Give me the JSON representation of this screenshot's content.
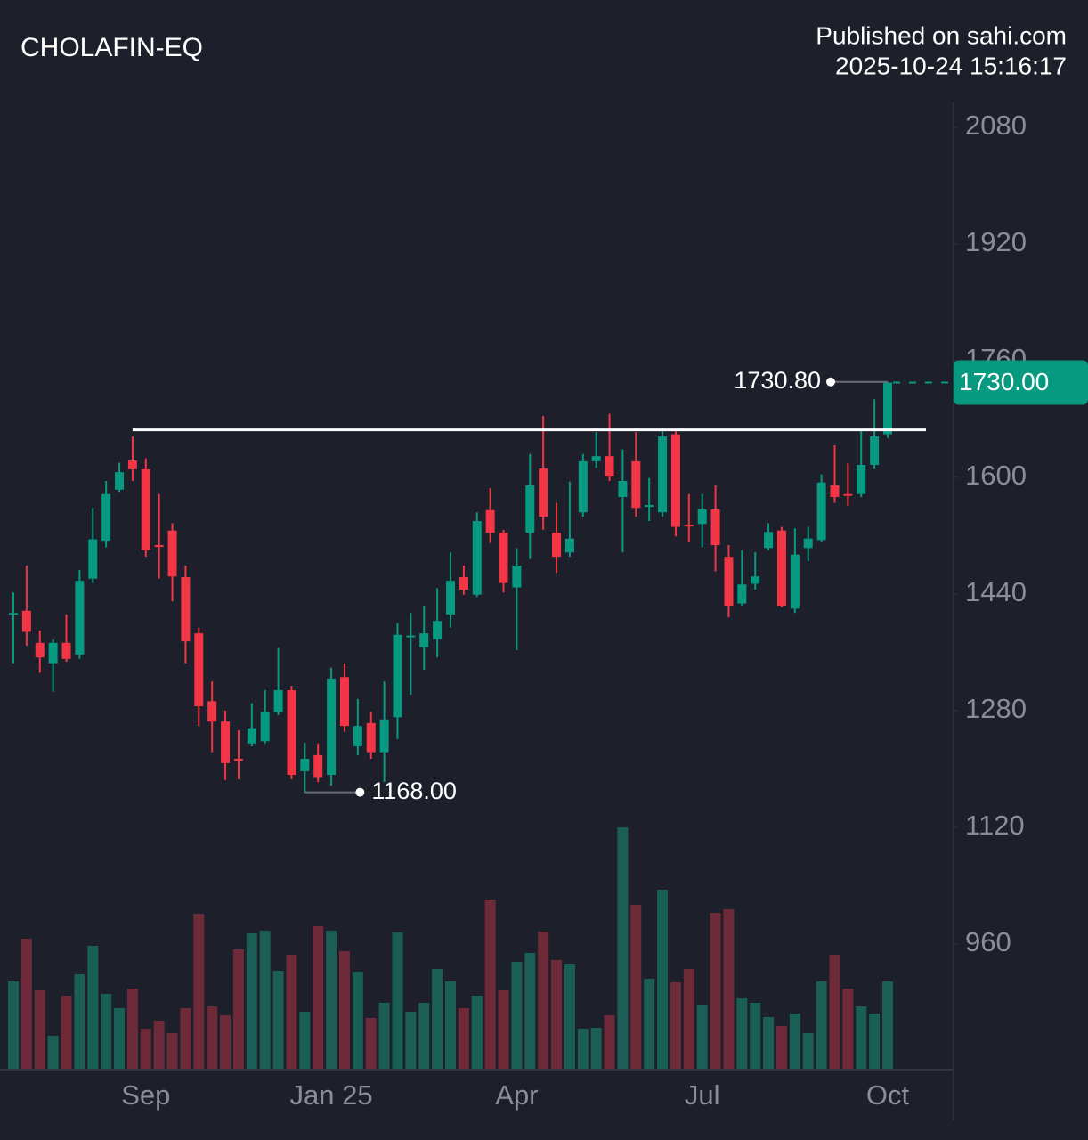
{
  "chart_data": {
    "type": "candlestick",
    "title": "CHOLAFIN-EQ",
    "source": "Published on sahi.com",
    "timestamp": "2025-10-24 15:16:17",
    "categories": [
      null,
      null,
      null,
      null,
      null,
      null,
      null,
      null,
      null,
      null,
      "Sep",
      null,
      null,
      null,
      null,
      null,
      null,
      null,
      null,
      null,
      null,
      null,
      null,
      null,
      "Jan 25",
      null,
      null,
      null,
      null,
      null,
      null,
      null,
      null,
      null,
      null,
      null,
      null,
      null,
      "Apr",
      null,
      null,
      null,
      null,
      null,
      null,
      null,
      null,
      null,
      null,
      null,
      null,
      null,
      "Jul",
      null,
      null,
      null,
      null,
      null,
      null,
      null,
      null,
      null,
      null,
      null,
      null,
      null,
      "Oct"
    ],
    "open": [
      1413,
      1417,
      1373,
      1345,
      1373,
      1357,
      1461,
      1513,
      1583,
      1623,
      1611,
      1507,
      1527,
      1463,
      1386,
      1293,
      1265,
      1214,
      1235,
      1238,
      1278,
      1308,
      1197,
      1219,
      1192,
      1326,
      1231,
      1263,
      1223,
      1271,
      1381,
      1367,
      1378,
      1412,
      1463,
      1439,
      1555,
      1524,
      1449,
      1524,
      1612,
      1524,
      1497,
      1552,
      1622,
      1629,
      1573,
      1622,
      1560,
      1552,
      1659,
      1535,
      1536,
      1556,
      1491,
      1427,
      1454,
      1503,
      1527,
      1420,
      1503,
      1514,
      1589,
      1577,
      1577,
      1617,
      1659
    ],
    "high": [
      1442,
      1479,
      1390,
      1378,
      1412,
      1473,
      1558,
      1595,
      1620,
      1656,
      1626,
      1577,
      1537,
      1479,
      1394,
      1320,
      1280,
      1253,
      1290,
      1308,
      1366,
      1314,
      1236,
      1235,
      1339,
      1345,
      1296,
      1278,
      1320,
      1400,
      1414,
      1424,
      1448,
      1497,
      1479,
      1552,
      1585,
      1528,
      1503,
      1632,
      1684,
      1565,
      1594,
      1632,
      1662,
      1687,
      1638,
      1662,
      1599,
      1668,
      1663,
      1577,
      1577,
      1589,
      1507,
      1500,
      1497,
      1537,
      1532,
      1530,
      1532,
      1604,
      1644,
      1619,
      1666,
      1707,
      1730.8
    ],
    "low": [
      1345,
      1369,
      1332,
      1306,
      1347,
      1351,
      1455,
      1504,
      1580,
      1595,
      1491,
      1461,
      1430,
      1345,
      1259,
      1223,
      1185,
      1186,
      1231,
      1235,
      1274,
      1186,
      1168,
      1182,
      1177,
      1251,
      1219,
      1214,
      1182,
      1241,
      1302,
      1336,
      1353,
      1394,
      1439,
      1436,
      1510,
      1442,
      1363,
      1488,
      1528,
      1469,
      1491,
      1546,
      1613,
      1595,
      1497,
      1546,
      1540,
      1546,
      1519,
      1512,
      1504,
      1471,
      1408,
      1424,
      1446,
      1500,
      1422,
      1414,
      1485,
      1512,
      1565,
      1561,
      1573,
      1611,
      1654
    ],
    "close": [
      1414,
      1388,
      1353,
      1373,
      1351,
      1458,
      1515,
      1577,
      1607,
      1611,
      1500,
      1505,
      1464,
      1375,
      1286,
      1265,
      1208,
      1211,
      1256,
      1278,
      1308,
      1192,
      1214,
      1189,
      1324,
      1259,
      1259,
      1223,
      1268,
      1384,
      1383,
      1386,
      1403,
      1458,
      1446,
      1540,
      1524,
      1455,
      1479,
      1589,
      1546,
      1491,
      1516,
      1622,
      1629,
      1601,
      1595,
      1558,
      1562,
      1656,
      1532,
      1533,
      1556,
      1507,
      1424,
      1453,
      1464,
      1525,
      1424,
      1494,
      1516,
      1593,
      1573,
      1575,
      1617,
      1656,
      1730
    ],
    "volume": [
      98,
      146,
      88,
      37,
      82,
      106,
      138,
      84,
      68,
      90,
      45,
      54,
      40,
      68,
      174,
      70,
      60,
      134,
      152,
      155,
      110,
      128,
      64,
      160,
      155,
      132,
      109,
      57,
      74,
      153,
      64,
      74,
      112,
      98,
      68,
      82,
      190,
      88,
      120,
      130,
      154,
      122,
      118,
      45,
      46,
      60,
      271,
      184,
      101,
      201,
      97,
      112,
      72,
      175,
      179,
      79,
      74,
      58,
      48,
      62,
      40,
      98,
      128,
      90,
      70,
      62,
      98
    ],
    "up_color": "#089981",
    "down_color": "#f23645",
    "volume_up_color": "#1b5e55",
    "volume_down_color": "#6e2a38",
    "ylim": [
      789,
      2114
    ],
    "yticks": [
      960,
      1120,
      1280,
      1440,
      1600,
      1760,
      1920,
      2080
    ],
    "trendline": {
      "value": 1665,
      "start": 9
    },
    "high_marker": {
      "value": 1730.8,
      "label": "1730.80",
      "index": 66
    },
    "low_marker": {
      "value": 1168,
      "label": "1168.00",
      "index": 22
    },
    "last_price": {
      "value": 1730,
      "label": "1730.00"
    }
  }
}
